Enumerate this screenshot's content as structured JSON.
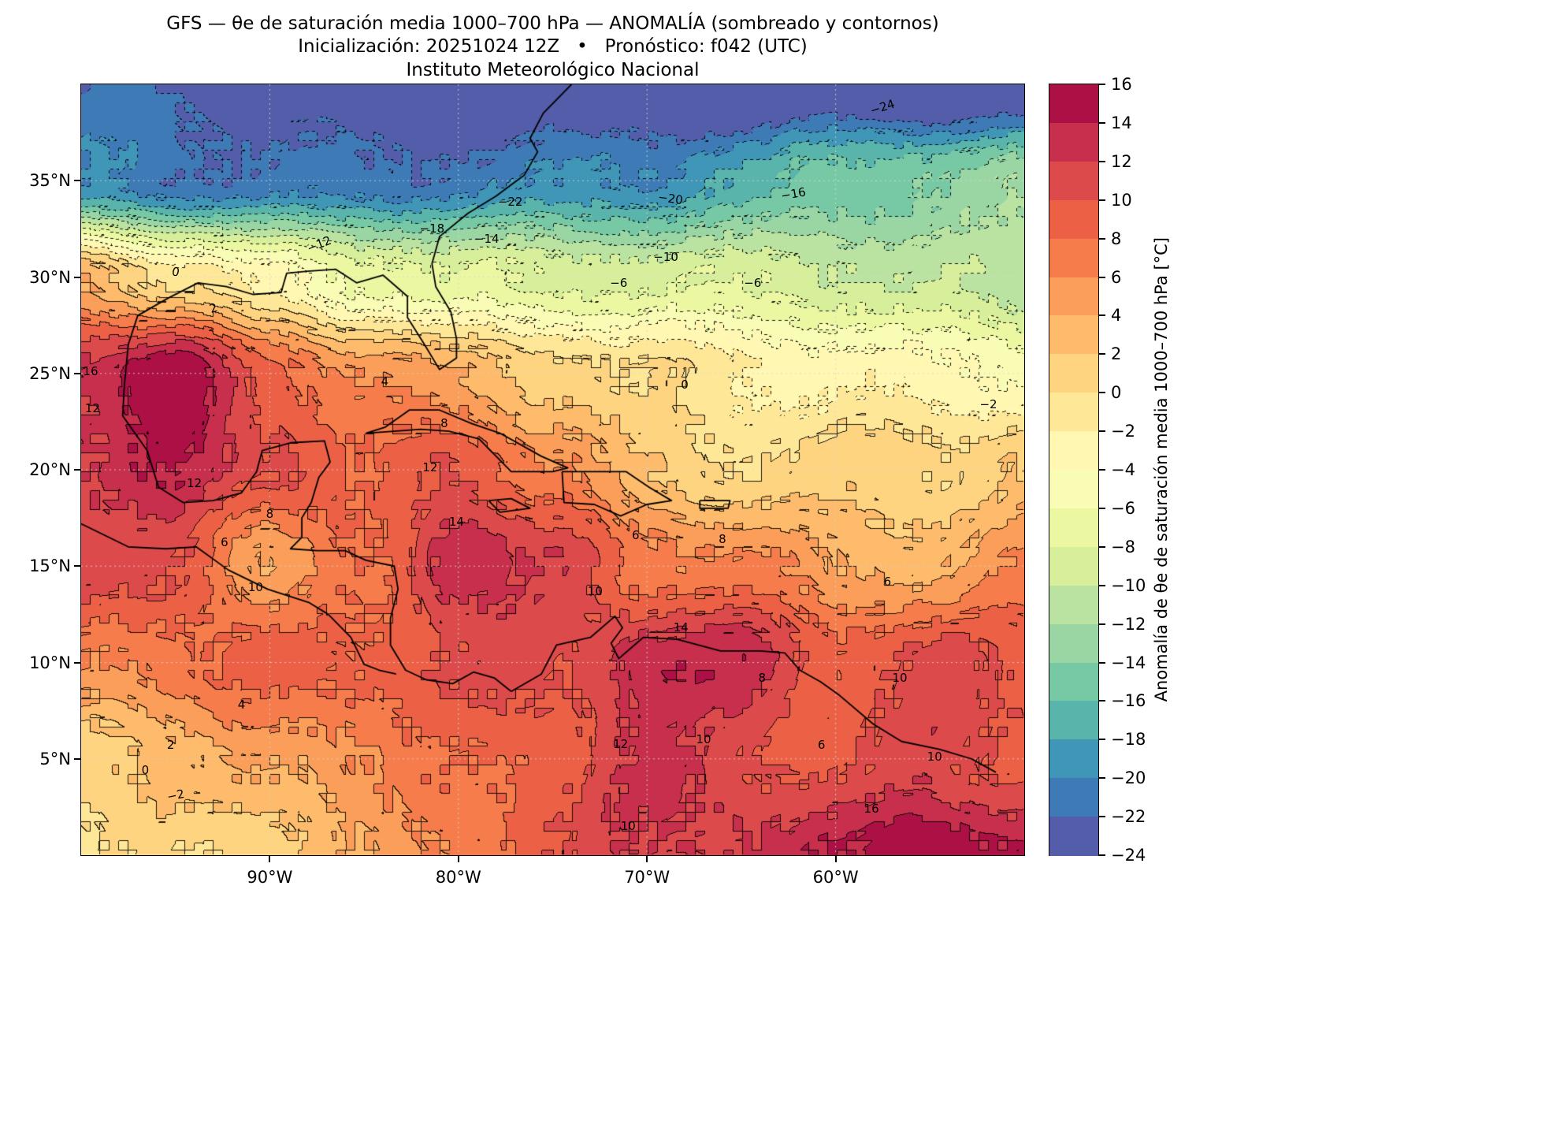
{
  "header": {
    "line1": "GFS — θe de saturación media 1000–700 hPa — ANOMALÍA (sombreado y contornos)",
    "line2": "Inicialización: 20251024 12Z   •   Pronóstico: f042 (UTC)",
    "line3": "Instituto Meteorológico Nacional"
  },
  "chart_data": {
    "type": "heatmap",
    "title": "GFS — θe de saturación media 1000–700 hPa — ANOMALÍA (sombreado y contornos)",
    "subtitle": "Inicialización: 20251024 12Z • Pronóstico: f042 (UTC)",
    "source": "Instituto Meteorológico Nacional",
    "units": "°C",
    "lon_range": [
      -100,
      -50
    ],
    "lat_range": [
      0,
      40
    ],
    "levels": {
      "min": -24,
      "max": 16,
      "step": 2
    },
    "colors": [
      "#535da9",
      "#3d7ab6",
      "#3f96b7",
      "#59b4ab",
      "#77c9a5",
      "#9ad6a4",
      "#bae3a1",
      "#d7ef9b",
      "#ecf7a2",
      "#f9fcb5",
      "#fff7b2",
      "#fee898",
      "#fed480",
      "#fdbb6b",
      "#fb9e59",
      "#f67d4b",
      "#ec6146",
      "#dd4a4c",
      "#c72f4c",
      "#ac1045"
    ],
    "grid": {
      "lons": [
        -100,
        -95,
        -90,
        -85,
        -80,
        -75,
        -70,
        -65,
        -60,
        -55,
        -50
      ],
      "lats": [
        40,
        35,
        30,
        25,
        20,
        15,
        10,
        5,
        0
      ],
      "values": [
        [
          -22,
          -23,
          -23,
          -24,
          -24,
          -24,
          -25,
          -26,
          -26,
          -26,
          -25
        ],
        [
          -20,
          -21,
          -22,
          -22,
          -21,
          -20,
          -19,
          -17,
          -15,
          -14,
          -13
        ],
        [
          4,
          0,
          -3,
          -6,
          -8,
          -9,
          -9,
          -9,
          -9,
          -10,
          -11
        ],
        [
          13,
          15,
          9,
          6,
          4,
          2,
          0,
          -2,
          -3,
          -4,
          -4
        ],
        [
          12,
          14,
          11,
          7,
          10,
          6,
          2,
          1,
          1,
          1,
          2
        ],
        [
          10,
          11,
          4,
          8,
          14,
          11,
          7,
          6,
          4,
          4,
          6
        ],
        [
          6,
          7,
          8,
          9,
          10,
          11,
          14,
          13,
          9,
          10,
          9
        ],
        [
          2,
          3,
          5,
          6,
          7,
          9,
          12,
          11,
          10,
          11,
          10
        ],
        [
          -1,
          0,
          2,
          4,
          7,
          10,
          11,
          12,
          13,
          16,
          15
        ]
      ]
    },
    "x_ticks": [
      {
        "label": "90°W",
        "lon": -90
      },
      {
        "label": "80°W",
        "lon": -80
      },
      {
        "label": "70°W",
        "lon": -70
      },
      {
        "label": "60°W",
        "lon": -60
      }
    ],
    "y_ticks": [
      {
        "label": "35°N",
        "lat": 35
      },
      {
        "label": "30°N",
        "lat": 30
      },
      {
        "label": "25°N",
        "lat": 25
      },
      {
        "label": "20°N",
        "lat": 20
      },
      {
        "label": "15°N",
        "lat": 15
      },
      {
        "label": "10°N",
        "lat": 10
      },
      {
        "label": "5°N",
        "lat": 5
      }
    ],
    "colorbar": {
      "label": "Anomalía de θe de saturación media 1000–700 hPa [°C]",
      "ticks": [
        {
          "label": "16",
          "value": 16
        },
        {
          "label": "14",
          "value": 14
        },
        {
          "label": "12",
          "value": 12
        },
        {
          "label": "10",
          "value": 10
        },
        {
          "label": "8",
          "value": 8
        },
        {
          "label": "6",
          "value": 6
        },
        {
          "label": "4",
          "value": 4
        },
        {
          "label": "2",
          "value": 2
        },
        {
          "label": "0",
          "value": 0
        },
        {
          "label": "−2",
          "value": -2
        },
        {
          "label": "−4",
          "value": -4
        },
        {
          "label": "−6",
          "value": -6
        },
        {
          "label": "−8",
          "value": -8
        },
        {
          "label": "−10",
          "value": -10
        },
        {
          "label": "−12",
          "value": -12
        },
        {
          "label": "−14",
          "value": -14
        },
        {
          "label": "−16",
          "value": -16
        },
        {
          "label": "−18",
          "value": -18
        },
        {
          "label": "−20",
          "value": -20
        },
        {
          "label": "−22",
          "value": -22
        },
        {
          "label": "−24",
          "value": -24
        }
      ]
    },
    "contour_labels": [
      {
        "text": "−24",
        "fx": 0.85,
        "fy": 0.03,
        "rot": -18
      },
      {
        "text": "−22",
        "fx": 0.455,
        "fy": 0.152,
        "rot": 0
      },
      {
        "text": "−20",
        "fx": 0.625,
        "fy": 0.148,
        "rot": 8
      },
      {
        "text": "−16",
        "fx": 0.755,
        "fy": 0.142,
        "rot": -10
      },
      {
        "text": "−18",
        "fx": 0.372,
        "fy": 0.187,
        "rot": 0
      },
      {
        "text": "−14",
        "fx": 0.43,
        "fy": 0.2,
        "rot": 0
      },
      {
        "text": "−12",
        "fx": 0.252,
        "fy": 0.208,
        "rot": -22
      },
      {
        "text": "−10",
        "fx": 0.62,
        "fy": 0.224,
        "rot": 0
      },
      {
        "text": "−6",
        "fx": 0.57,
        "fy": 0.258,
        "rot": 0
      },
      {
        "text": "−6",
        "fx": 0.712,
        "fy": 0.258,
        "rot": 0
      },
      {
        "text": "0",
        "fx": 0.1,
        "fy": 0.243,
        "rot": 12
      },
      {
        "text": "2",
        "fx": 0.14,
        "fy": 0.29,
        "rot": -18
      },
      {
        "text": "4",
        "fx": 0.322,
        "fy": 0.385,
        "rot": 0
      },
      {
        "text": "0",
        "fx": 0.64,
        "fy": 0.39,
        "rot": 0
      },
      {
        "text": "−2",
        "fx": 0.962,
        "fy": 0.415,
        "rot": 0
      },
      {
        "text": "16",
        "fx": 0.01,
        "fy": 0.372,
        "rot": 0
      },
      {
        "text": "12",
        "fx": 0.012,
        "fy": 0.42,
        "rot": 0
      },
      {
        "text": "8",
        "fx": 0.385,
        "fy": 0.44,
        "rot": 0
      },
      {
        "text": "12",
        "fx": 0.37,
        "fy": 0.497,
        "rot": 0
      },
      {
        "text": "12",
        "fx": 0.12,
        "fy": 0.517,
        "rot": 0
      },
      {
        "text": "8",
        "fx": 0.2,
        "fy": 0.557,
        "rot": 0
      },
      {
        "text": "14",
        "fx": 0.398,
        "fy": 0.567,
        "rot": 0
      },
      {
        "text": "6",
        "fx": 0.152,
        "fy": 0.594,
        "rot": 0
      },
      {
        "text": "6",
        "fx": 0.588,
        "fy": 0.585,
        "rot": 0
      },
      {
        "text": "8",
        "fx": 0.68,
        "fy": 0.59,
        "rot": 0
      },
      {
        "text": "10",
        "fx": 0.185,
        "fy": 0.652,
        "rot": 0
      },
      {
        "text": "10",
        "fx": 0.545,
        "fy": 0.657,
        "rot": 0
      },
      {
        "text": "6",
        "fx": 0.855,
        "fy": 0.645,
        "rot": 0
      },
      {
        "text": "14",
        "fx": 0.636,
        "fy": 0.705,
        "rot": 0
      },
      {
        "text": "8",
        "fx": 0.722,
        "fy": 0.77,
        "rot": 0
      },
      {
        "text": "10",
        "fx": 0.868,
        "fy": 0.77,
        "rot": 0
      },
      {
        "text": "4",
        "fx": 0.17,
        "fy": 0.805,
        "rot": 0
      },
      {
        "text": "2",
        "fx": 0.095,
        "fy": 0.857,
        "rot": 0
      },
      {
        "text": "0",
        "fx": 0.068,
        "fy": 0.89,
        "rot": 0
      },
      {
        "text": "−2",
        "fx": 0.1,
        "fy": 0.922,
        "rot": -12
      },
      {
        "text": "12",
        "fx": 0.572,
        "fy": 0.856,
        "rot": 0
      },
      {
        "text": "10",
        "fx": 0.66,
        "fy": 0.85,
        "rot": 0
      },
      {
        "text": "6",
        "fx": 0.785,
        "fy": 0.857,
        "rot": 0
      },
      {
        "text": "16",
        "fx": 0.838,
        "fy": 0.94,
        "rot": 0
      },
      {
        "text": "10",
        "fx": 0.58,
        "fy": 0.962,
        "rot": 0
      },
      {
        "text": "10",
        "fx": 0.905,
        "fy": 0.872,
        "rot": 0
      }
    ],
    "coastlines": [
      [
        [
          -74,
          40
        ],
        [
          -75.5,
          38.5
        ],
        [
          -76.2,
          37.2
        ],
        [
          -75.8,
          36.5
        ],
        [
          -76.5,
          35.3
        ],
        [
          -78,
          34.2
        ],
        [
          -79.5,
          33.3
        ],
        [
          -81,
          32.1
        ],
        [
          -81.4,
          30.7
        ],
        [
          -81.2,
          29.5
        ],
        [
          -80.4,
          28.2
        ],
        [
          -80.1,
          26.8
        ],
        [
          -80.1,
          25.8
        ],
        [
          -81,
          25.2
        ],
        [
          -81.8,
          26.5
        ],
        [
          -82.7,
          27.9
        ],
        [
          -82.7,
          29
        ],
        [
          -84,
          30.1
        ],
        [
          -85.4,
          29.7
        ],
        [
          -86.5,
          30.4
        ],
        [
          -88,
          30.3
        ],
        [
          -89.1,
          30.2
        ],
        [
          -89.4,
          29.2
        ],
        [
          -90.9,
          29.1
        ],
        [
          -92.3,
          29.5
        ],
        [
          -93.8,
          29.7
        ],
        [
          -95.4,
          28.9
        ],
        [
          -97,
          28
        ],
        [
          -97.5,
          26.5
        ],
        [
          -97.7,
          24.5
        ],
        [
          -97.8,
          22.8
        ],
        [
          -96.5,
          21
        ],
        [
          -95.9,
          19.1
        ],
        [
          -94.6,
          18.3
        ],
        [
          -93,
          18.4
        ],
        [
          -91.5,
          18.8
        ],
        [
          -90.7,
          19.9
        ],
        [
          -90.4,
          21
        ],
        [
          -88.9,
          21.4
        ],
        [
          -87.1,
          21.5
        ],
        [
          -86.8,
          20.4
        ],
        [
          -87.4,
          19.6
        ],
        [
          -87.8,
          18.3
        ],
        [
          -88.3,
          17.5
        ],
        [
          -88.3,
          16.5
        ],
        [
          -88.9,
          15.9
        ],
        [
          -87.5,
          15.8
        ],
        [
          -86,
          15.8
        ],
        [
          -84.9,
          15.3
        ],
        [
          -83.4,
          15
        ],
        [
          -83.2,
          13.8
        ],
        [
          -83.6,
          12.3
        ],
        [
          -83.6,
          10.9
        ],
        [
          -82.8,
          9.6
        ],
        [
          -81.7,
          9.1
        ],
        [
          -80.3,
          8.9
        ],
        [
          -79.2,
          9.5
        ],
        [
          -78.1,
          9.2
        ],
        [
          -77.2,
          8.5
        ]
      ],
      [
        [
          -77.2,
          8.5
        ],
        [
          -75.6,
          9.4
        ],
        [
          -74.8,
          10.9
        ],
        [
          -73,
          11.3
        ],
        [
          -71.7,
          12.4
        ],
        [
          -71.3,
          11.8
        ],
        [
          -71.9,
          11
        ],
        [
          -71.5,
          10.2
        ],
        [
          -70.2,
          11.3
        ],
        [
          -68.4,
          11.2
        ],
        [
          -66.1,
          10.6
        ],
        [
          -64,
          10.6
        ],
        [
          -62.7,
          10.5
        ],
        [
          -61.9,
          9.6
        ],
        [
          -60.8,
          9
        ],
        [
          -59.8,
          8.3
        ],
        [
          -58,
          6.8
        ],
        [
          -56.5,
          5.9
        ],
        [
          -54.5,
          5.5
        ],
        [
          -52.8,
          5
        ],
        [
          -51.5,
          4.3
        ]
      ],
      [
        [
          -100,
          17.2
        ],
        [
          -97.5,
          16
        ],
        [
          -95.5,
          15.9
        ],
        [
          -93.9,
          16
        ],
        [
          -92.2,
          14.8
        ],
        [
          -90.1,
          13.8
        ],
        [
          -87.9,
          13.1
        ],
        [
          -86.9,
          12.5
        ],
        [
          -85.7,
          11.3
        ],
        [
          -85,
          9.9
        ],
        [
          -84.2,
          9.6
        ],
        [
          -83.3,
          9.4
        ]
      ],
      [
        [
          -84.9,
          21.9
        ],
        [
          -83.9,
          22.2
        ],
        [
          -82.6,
          23.1
        ],
        [
          -81,
          23.1
        ],
        [
          -79.3,
          22.4
        ],
        [
          -77.8,
          21.9
        ],
        [
          -75.6,
          20.7
        ],
        [
          -74.2,
          20.1
        ],
        [
          -75,
          19.9
        ],
        [
          -77.2,
          19.9
        ],
        [
          -78.9,
          21.6
        ],
        [
          -80.5,
          22
        ],
        [
          -82,
          22.1
        ],
        [
          -83.4,
          22
        ],
        [
          -84.9,
          21.9
        ]
      ],
      [
        [
          -74.5,
          19.9
        ],
        [
          -72.7,
          19.9
        ],
        [
          -71.1,
          19.9
        ],
        [
          -69.9,
          19.1
        ],
        [
          -68.7,
          18.4
        ],
        [
          -70,
          18.2
        ],
        [
          -71.4,
          17.6
        ],
        [
          -72.8,
          18.2
        ],
        [
          -74.4,
          18.3
        ],
        [
          -74.5,
          19.9
        ]
      ],
      [
        [
          -78.4,
          18.4
        ],
        [
          -77.2,
          18.5
        ],
        [
          -76.2,
          18
        ],
        [
          -77.8,
          17.8
        ],
        [
          -78.4,
          18.4
        ]
      ],
      [
        [
          -67.2,
          18.4
        ],
        [
          -65.6,
          18.4
        ],
        [
          -65.7,
          18
        ],
        [
          -67.2,
          18
        ],
        [
          -67.2,
          18.4
        ]
      ]
    ]
  }
}
